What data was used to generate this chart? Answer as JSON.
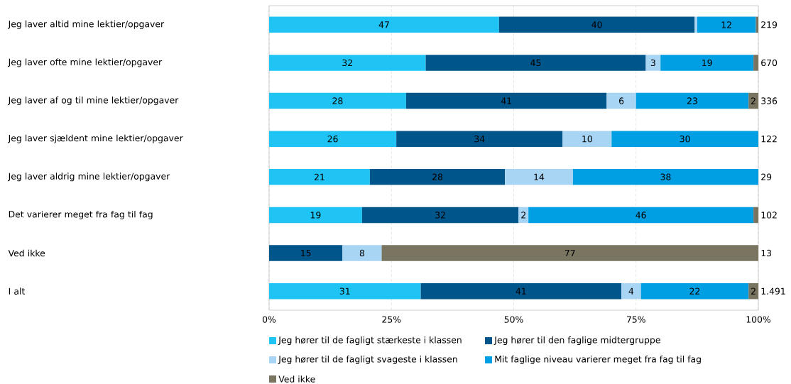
{
  "chart_data": {
    "type": "bar",
    "orientation": "horizontal",
    "stacked": true,
    "categories": [
      "Jeg laver altid mine lektier/opgaver",
      "Jeg laver ofte mine lektier/opgaver",
      "Jeg laver af og til mine lektier/opgaver",
      "Jeg laver sjældent mine lektier/opgaver",
      "Jeg laver aldrig mine lektier/opgaver",
      "Det varierer meget fra fag til fag",
      "Ved ikke",
      "I alt"
    ],
    "series": [
      {
        "name": "Jeg hører til de fagligt stærkeste i klassen",
        "color": "#20c4f4",
        "values": [
          47,
          32,
          28,
          26,
          20.6,
          19,
          null,
          31
        ],
        "value_labels": [
          "47",
          "32",
          "28",
          "26",
          "21",
          "19",
          null,
          "31"
        ]
      },
      {
        "name": "Jeg hører til den faglige midtergruppe",
        "color": "#00558a",
        "values": [
          40,
          45,
          41,
          34,
          27.6,
          32,
          15,
          41
        ],
        "value_labels": [
          "40",
          "45",
          "41",
          "34",
          "28",
          "32",
          "15",
          "41"
        ]
      },
      {
        "name": "Jeg hører til de fagligt svageste i klassen",
        "color": "#a9d5f5",
        "values": [
          0.5,
          3,
          6,
          10,
          13.9,
          2,
          8,
          4
        ],
        "value_labels": [
          null,
          "3",
          "6",
          "10",
          "14",
          "2",
          "8",
          "4"
        ]
      },
      {
        "name": "Mit faglige niveau varierer meget fra fag til fag",
        "color": "#009ee2",
        "values": [
          12,
          19,
          23,
          30,
          37.9,
          46,
          null,
          22
        ],
        "value_labels": [
          "12",
          "19",
          "23",
          "30",
          "38",
          "46",
          null,
          "22"
        ]
      },
      {
        "name": "Ved ikke",
        "color": "#7a7560",
        "values": [
          0.5,
          1,
          2,
          null,
          null,
          1,
          77,
          2
        ],
        "value_labels": [
          null,
          null,
          "2",
          null,
          null,
          null,
          "77",
          "2"
        ]
      }
    ],
    "annotations": [
      "219",
      "670",
      "336",
      "122",
      "29",
      "102",
      "13",
      "1.491"
    ],
    "xlim": [
      0,
      100
    ],
    "xticks": [
      {
        "value": 0,
        "label": "0%"
      },
      {
        "value": 25,
        "label": "25%"
      },
      {
        "value": 50,
        "label": "50%"
      },
      {
        "value": 75,
        "label": "75%"
      },
      {
        "value": 100,
        "label": "100%"
      }
    ],
    "grid": "x",
    "legend": "bottom"
  }
}
